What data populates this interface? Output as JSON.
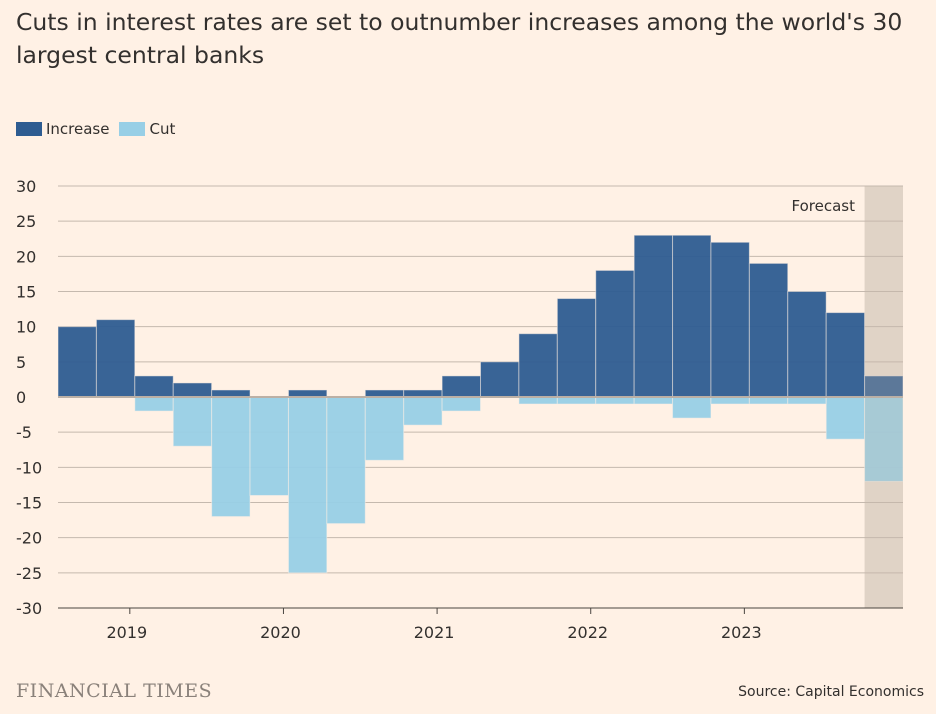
{
  "title": "Cuts in interest rates are set to outnumber increases among the world's 30 largest central banks",
  "source": "Source: Capital Economics",
  "brand": "FINANCIAL TIMES",
  "colors": {
    "increase": "#2e5c91",
    "cut": "#98cfe6",
    "forecast_shade": "#e8dcd1",
    "grid": "#c5b9ae"
  },
  "chart_data": {
    "type": "bar",
    "stacked": "diverging",
    "title": "Cuts in interest rates are set to outnumber increases among the world's 30 largest central banks",
    "xlabel": "",
    "ylabel": "",
    "ylim": [
      -30,
      30
    ],
    "yticks": [
      30,
      25,
      20,
      15,
      10,
      5,
      0,
      -5,
      -10,
      -15,
      -20,
      -25,
      -30
    ],
    "xticks": [
      "2019",
      "2020",
      "2021",
      "2022",
      "2023"
    ],
    "grid": true,
    "legend": "top-left",
    "categories": [
      "2018 Q3",
      "2018 Q4",
      "2019 Q1",
      "2019 Q2",
      "2019 Q3",
      "2019 Q4",
      "2020 Q1",
      "2020 Q2",
      "2020 Q3",
      "2020 Q4",
      "2021 Q1",
      "2021 Q2",
      "2021 Q3",
      "2021 Q4",
      "2022 Q1",
      "2022 Q2",
      "2022 Q3",
      "2022 Q4",
      "2023 Q1",
      "2023 Q2",
      "2023 Q3",
      "2023 Q4"
    ],
    "series": [
      {
        "name": "Increase",
        "values": [
          10,
          11,
          3,
          2,
          1,
          0,
          1,
          0,
          1,
          1,
          3,
          5,
          9,
          14,
          18,
          23,
          23,
          22,
          19,
          15,
          12,
          3
        ]
      },
      {
        "name": "Cut",
        "values": [
          0,
          0,
          -2,
          -7,
          -17,
          -14,
          -25,
          -18,
          -9,
          -4,
          -2,
          0,
          -1,
          -1,
          -1,
          -1,
          -3,
          -1,
          -1,
          -1,
          -6,
          -12
        ]
      }
    ],
    "annotation": "Forecast",
    "forecast_categories": [
      "2023 Q4"
    ]
  }
}
